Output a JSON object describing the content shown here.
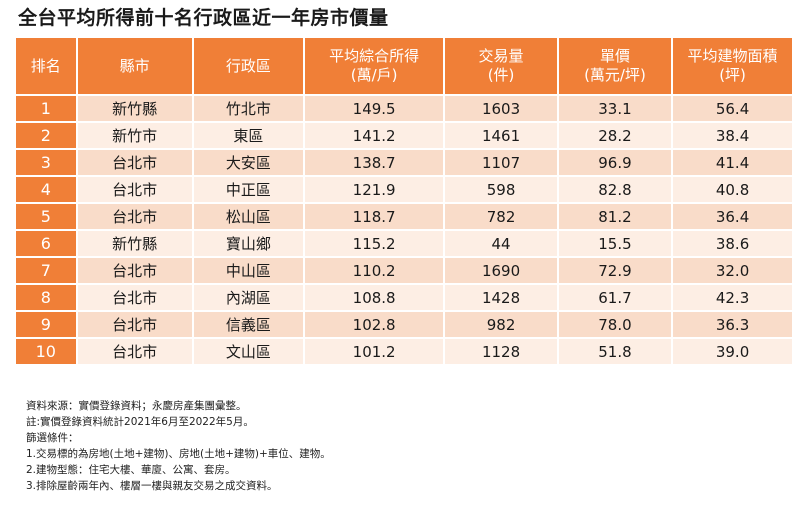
{
  "title": "全台平均所得前十名行政區近一年房市價量",
  "table": {
    "headers": [
      {
        "line1": "排名",
        "line2": ""
      },
      {
        "line1": "縣市",
        "line2": ""
      },
      {
        "line1": "行政區",
        "line2": ""
      },
      {
        "line1": "平均綜合所得",
        "line2": "(萬/戶)"
      },
      {
        "line1": "交易量",
        "line2": "(件)"
      },
      {
        "line1": "單價",
        "line2": "(萬元/坪)"
      },
      {
        "line1": "平均建物面積",
        "line2": "(坪)"
      }
    ],
    "rows": [
      [
        "1",
        "新竹縣",
        "竹北市",
        "149.5",
        "1603",
        "33.1",
        "56.4"
      ],
      [
        "2",
        "新竹市",
        "東區",
        "141.2",
        "1461",
        "28.2",
        "38.4"
      ],
      [
        "3",
        "台北市",
        "大安區",
        "138.7",
        "1107",
        "96.9",
        "41.4"
      ],
      [
        "4",
        "台北市",
        "中正區",
        "121.9",
        "598",
        "82.8",
        "40.8"
      ],
      [
        "5",
        "台北市",
        "松山區",
        "118.7",
        "782",
        "81.2",
        "36.4"
      ],
      [
        "6",
        "新竹縣",
        "寶山鄉",
        "115.2",
        "44",
        "15.5",
        "38.6"
      ],
      [
        "7",
        "台北市",
        "中山區",
        "110.2",
        "1690",
        "72.9",
        "32.0"
      ],
      [
        "8",
        "台北市",
        "內湖區",
        "108.8",
        "1428",
        "61.7",
        "42.3"
      ],
      [
        "9",
        "台北市",
        "信義區",
        "102.8",
        "982",
        "78.0",
        "36.3"
      ],
      [
        "10",
        "台北市",
        "文山區",
        "101.2",
        "1128",
        "51.8",
        "39.0"
      ]
    ]
  },
  "notes": [
    "資料來源：實價登錄資料；永慶房產集團彙整。",
    "註:實價登錄資料統計2021年6月至2022年5月。",
    "篩選條件：",
    "1.交易標的為房地(土地+建物)、房地(土地+建物)+車位、建物。",
    "2.建物型態：住宅大樓、華廈、公寓、套房。",
    "3.排除屋齡兩年內、樓層一樓與親友交易之成交資料。"
  ],
  "colors": {
    "header_bg": "#f07f37",
    "row_odd_bg": "#f9dcc9",
    "row_even_bg": "#fdeee4"
  }
}
